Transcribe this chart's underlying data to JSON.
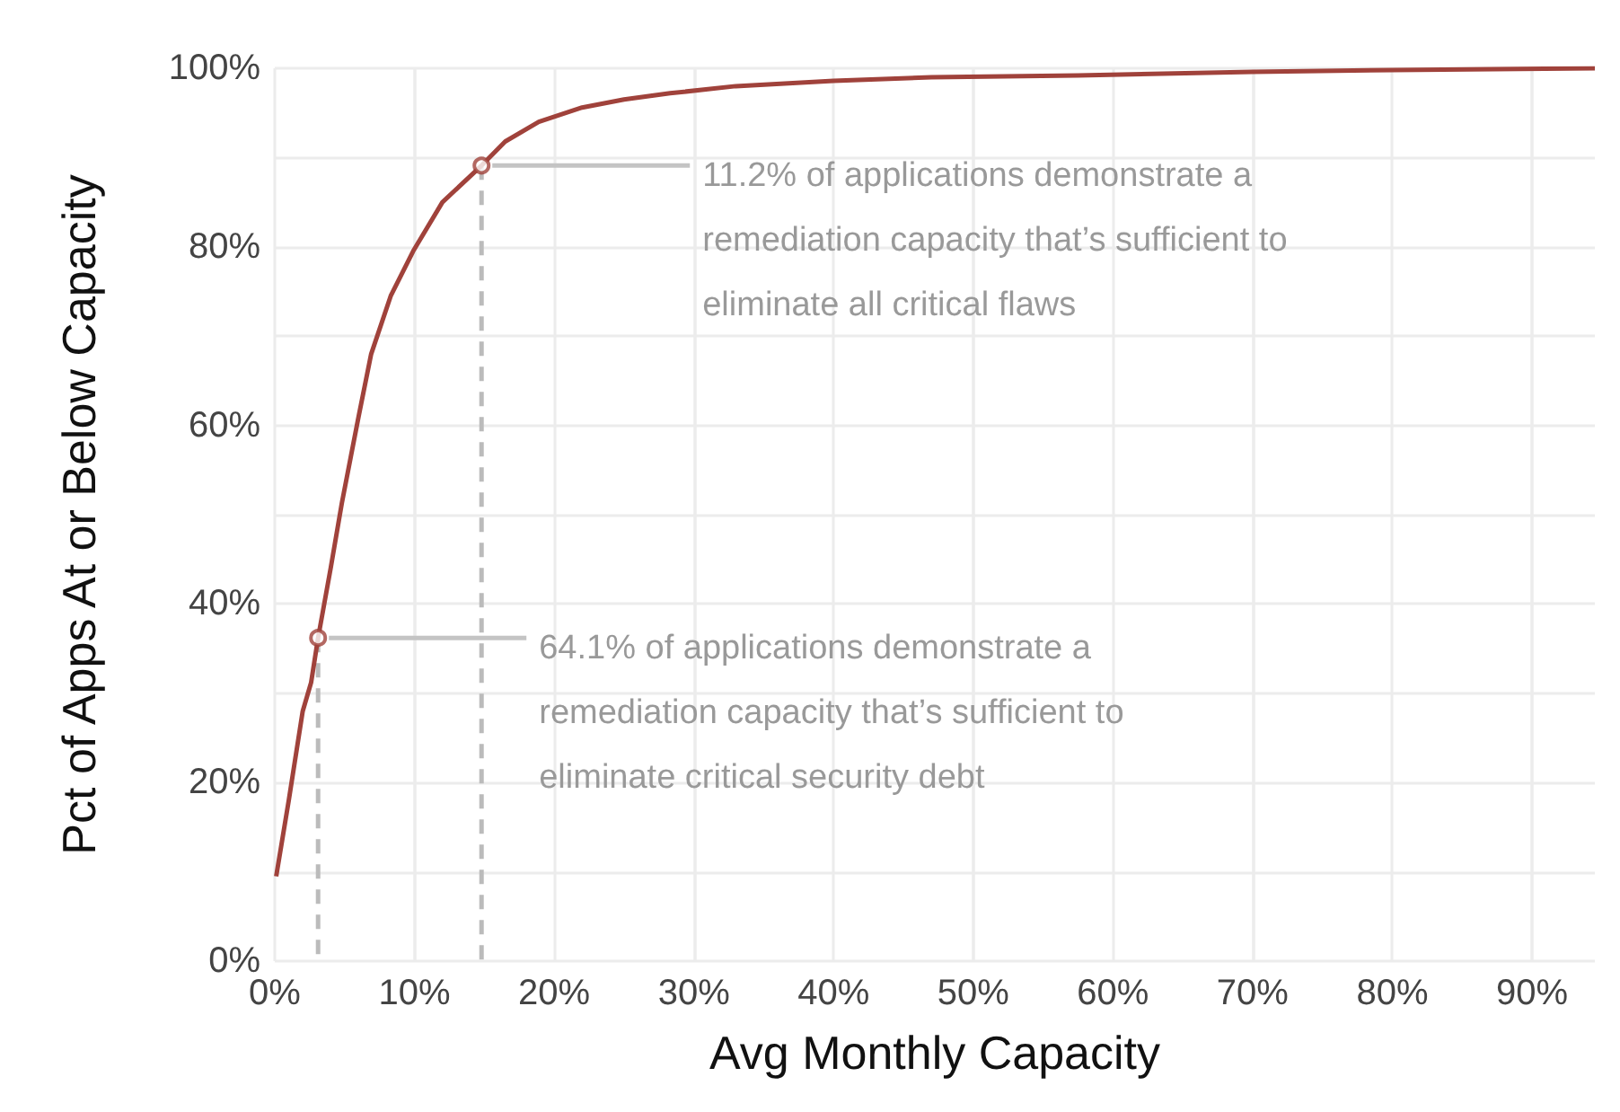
{
  "chart_data": {
    "type": "line",
    "xlabel": "Avg Monthly Capacity",
    "ylabel": "Pct of Apps At or Below Capacity",
    "series": [
      {
        "color": "#a0423b",
        "x": [
          0.1,
          1,
          2,
          2.6,
          3.1,
          4,
          4.8,
          6,
          6.9,
          8.3,
          9.9,
          12,
          14.8,
          16.5,
          18.9,
          22,
          25,
          28.3,
          33,
          40,
          47,
          57.5,
          70,
          80,
          94.5
        ],
        "values": [
          9.5,
          18,
          28,
          31.2,
          36.2,
          44,
          51.3,
          61,
          68,
          74.5,
          79.5,
          85,
          89.1,
          91.8,
          94,
          95.6,
          96.5,
          97.2,
          98,
          98.6,
          99,
          99.2,
          99.6,
          99.8,
          100
        ]
      },
      {
        "type": "line",
        "color": "#bbbbbb",
        "line_style": "dashed",
        "x": [
          3.1,
          3.1
        ],
        "values": [
          36.2,
          0
        ]
      },
      {
        "type": "line",
        "color": "#bbbbbb",
        "line_style": "dashed",
        "x": [
          14.8,
          14.8
        ],
        "values": [
          89.1,
          0
        ]
      },
      {
        "type": "scatter",
        "color": "#a0423b",
        "marker": "circle",
        "x": [
          3.1,
          14.8
        ],
        "values": [
          36.2,
          89.1
        ]
      }
    ],
    "xlim": [
      0,
      94.5
    ],
    "xticks": [
      {
        "value": 0,
        "label": "0%"
      },
      {
        "value": 10,
        "label": "10%"
      },
      {
        "value": 20,
        "label": "20%"
      },
      {
        "value": 30,
        "label": "30%"
      },
      {
        "value": 40,
        "label": "40%"
      },
      {
        "value": 50,
        "label": "50%"
      },
      {
        "value": 60,
        "label": "60%"
      },
      {
        "value": 70,
        "label": "70%"
      },
      {
        "value": 80,
        "label": "80%"
      },
      {
        "value": 90,
        "label": "90%"
      }
    ],
    "ylim": [
      0,
      100
    ],
    "yticks": [
      {
        "value": 0,
        "label": "0%"
      },
      {
        "value": 20,
        "label": "20%"
      },
      {
        "value": 40,
        "label": "40%"
      },
      {
        "value": 60,
        "label": "60%"
      },
      {
        "value": 80,
        "label": "80%"
      },
      {
        "value": 100,
        "label": "100%"
      }
    ],
    "annotations": [
      {
        "text": "11.2% of applications demonstrate a remediation capacity that’s sufficient to eliminate all critical flaws",
        "x": 14.8,
        "y": 89.1
      },
      {
        "text": "64.1% of applications demonstrate a remediation capacity that’s sufficient to eliminate critical security debt",
        "x": 3.1,
        "y": 36.2
      }
    ],
    "grid": true
  }
}
